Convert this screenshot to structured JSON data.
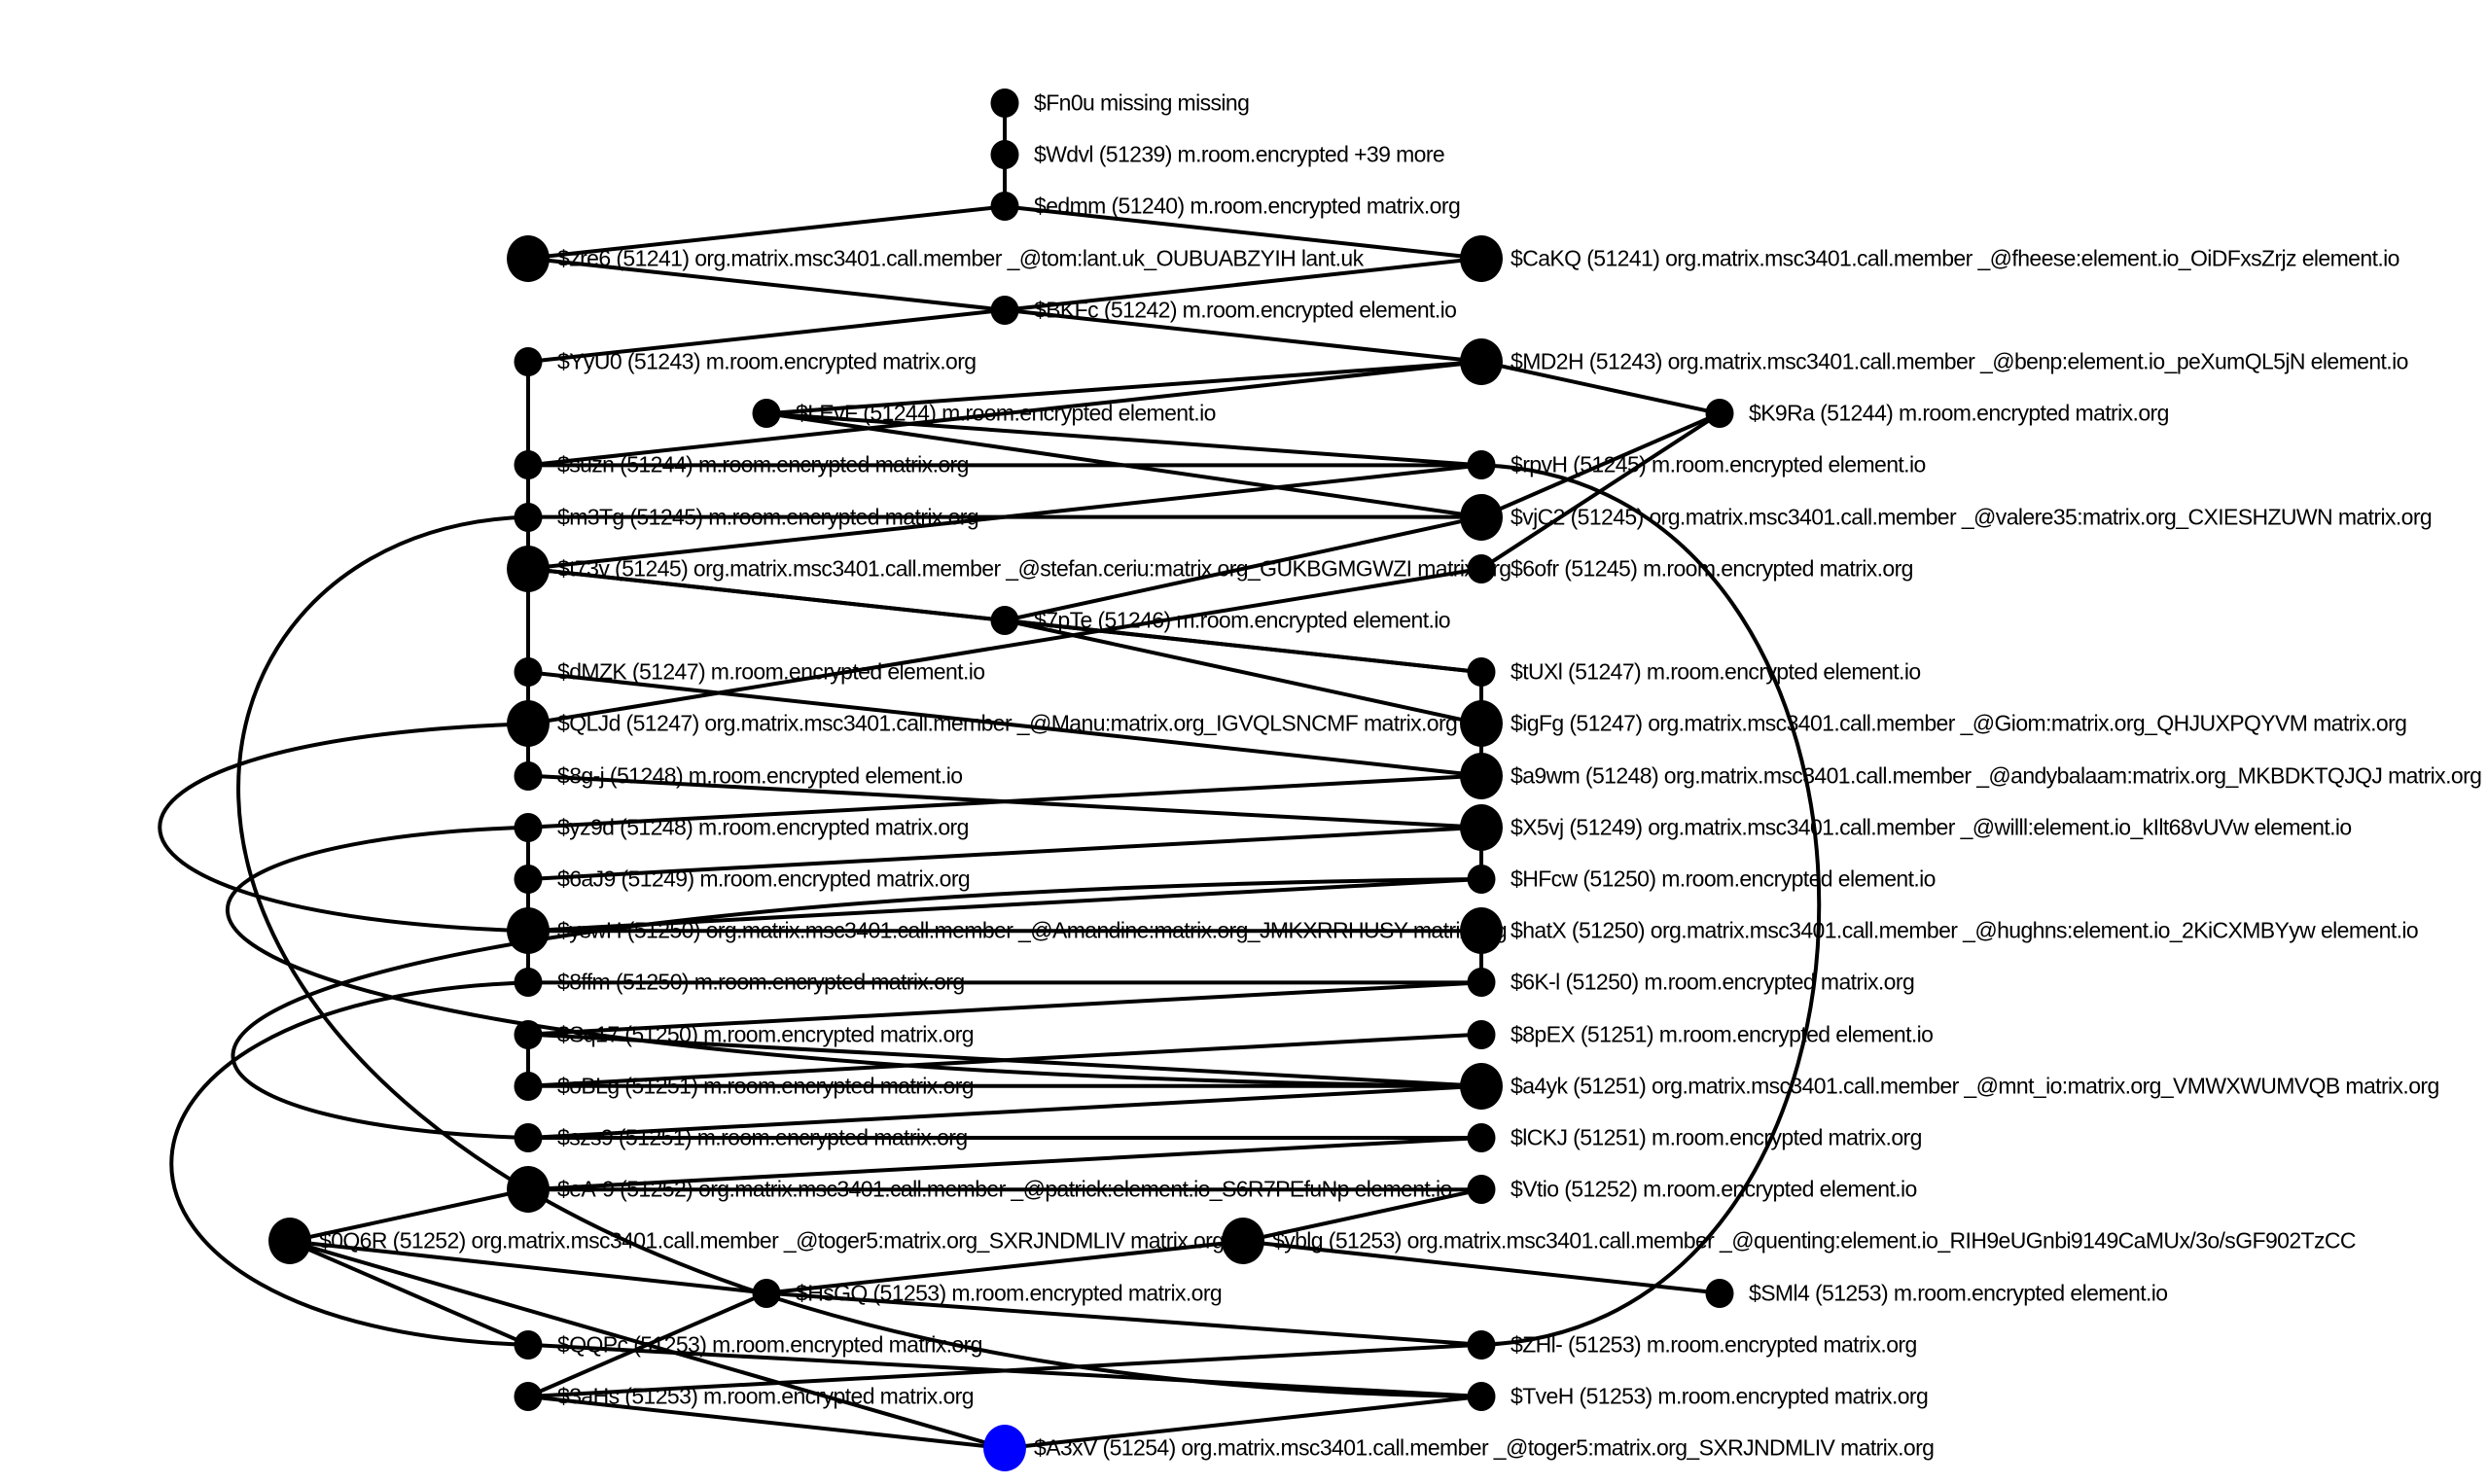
{
  "graph": {
    "highlight_color": "#0000ff",
    "node_color": "#000000",
    "nodes": [
      {
        "id": "Fn0u",
        "col": 3,
        "row": 0,
        "size": "small",
        "label": "$Fn0u missing missing"
      },
      {
        "id": "Wdvl",
        "col": 3,
        "row": 1,
        "size": "small",
        "label": "$Wdvl (51239) m.room.encrypted +39 more"
      },
      {
        "id": "edmm",
        "col": 3,
        "row": 2,
        "size": "small",
        "label": "$edmm (51240) m.room.encrypted matrix.org"
      },
      {
        "id": "zre6",
        "col": 1,
        "row": 3,
        "size": "big",
        "label": "$zre6 (51241) org.matrix.msc3401.call.member _@tom:lant.uk_OUBUABZYIH lant.uk"
      },
      {
        "id": "CaKQ",
        "col": 5,
        "row": 3,
        "size": "big",
        "label": "$CaKQ (51241) org.matrix.msc3401.call.member _@fheese:element.io_OiDFxsZrjz element.io"
      },
      {
        "id": "BKFc",
        "col": 3,
        "row": 4,
        "size": "small",
        "label": "$BKFc (51242) m.room.encrypted element.io"
      },
      {
        "id": "YyU0",
        "col": 1,
        "row": 5,
        "size": "small",
        "label": "$YyU0 (51243) m.room.encrypted matrix.org"
      },
      {
        "id": "MD2H",
        "col": 5,
        "row": 5,
        "size": "big",
        "label": "$MD2H (51243) org.matrix.msc3401.call.member _@benp:element.io_peXumQL5jN element.io"
      },
      {
        "id": "LEvF",
        "col": 2,
        "row": 6,
        "size": "small",
        "label": "$LEvF (51244) m.room.encrypted element.io"
      },
      {
        "id": "K9Ra",
        "col": 6,
        "row": 6,
        "size": "small",
        "label": "$K9Ra (51244) m.room.encrypted matrix.org"
      },
      {
        "id": "suzn",
        "col": 1,
        "row": 7,
        "size": "small",
        "label": "$suzn (51244) m.room.encrypted matrix.org"
      },
      {
        "id": "rpvH",
        "col": 5,
        "row": 7,
        "size": "small",
        "label": "$rpvH (51245) m.room.encrypted element.io"
      },
      {
        "id": "m3Tg",
        "col": 1,
        "row": 8,
        "size": "small",
        "label": "$m3Tg (51245) m.room.encrypted matrix.org"
      },
      {
        "id": "vjC2",
        "col": 5,
        "row": 8,
        "size": "big",
        "label": "$vjC2 (51245) org.matrix.msc3401.call.member _@valere35:matrix.org_CXIESHZUWN matrix.org"
      },
      {
        "id": "t73v",
        "col": 1,
        "row": 9,
        "size": "big",
        "label": "$t73v (51245) org.matrix.msc3401.call.member _@stefan.ceriu:matrix.org_GUKBGMGWZI matrix.org"
      },
      {
        "id": "6ofr",
        "col": 5,
        "row": 9,
        "size": "small",
        "label": "$6ofr (51245) m.room.encrypted matrix.org"
      },
      {
        "id": "7pTe",
        "col": 3,
        "row": 10,
        "size": "small",
        "label": "$7pTe (51246) m.room.encrypted element.io"
      },
      {
        "id": "dMZK",
        "col": 1,
        "row": 11,
        "size": "small",
        "label": "$dMZK (51247) m.room.encrypted element.io"
      },
      {
        "id": "tUXl",
        "col": 5,
        "row": 11,
        "size": "small",
        "label": "$tUXl (51247) m.room.encrypted element.io"
      },
      {
        "id": "QLJd",
        "col": 1,
        "row": 12,
        "size": "big",
        "label": "$QLJd (51247) org.matrix.msc3401.call.member _@Manu:matrix.org_IGVQLSNCMF matrix.org"
      },
      {
        "id": "igFg",
        "col": 5,
        "row": 12,
        "size": "big",
        "label": "$igFg (51247) org.matrix.msc3401.call.member _@Giom:matrix.org_QHJUXPQYVM matrix.org"
      },
      {
        "id": "8g-j",
        "col": 1,
        "row": 13,
        "size": "small",
        "label": "$8g-j (51248) m.room.encrypted element.io"
      },
      {
        "id": "a9wm",
        "col": 5,
        "row": 13,
        "size": "big",
        "label": "$a9wm (51248) org.matrix.msc3401.call.member _@andybalaam:matrix.org_MKBDKTQJQJ matrix.org"
      },
      {
        "id": "yz9d",
        "col": 1,
        "row": 14,
        "size": "small",
        "label": "$yz9d (51248) m.room.encrypted matrix.org"
      },
      {
        "id": "X5vj",
        "col": 5,
        "row": 14,
        "size": "big",
        "label": "$X5vj (51249) org.matrix.msc3401.call.member _@willl:element.io_kIlt68vUVw element.io"
      },
      {
        "id": "6aJ9",
        "col": 1,
        "row": 15,
        "size": "small",
        "label": "$6aJ9 (51249) m.room.encrypted matrix.org"
      },
      {
        "id": "HFcw",
        "col": 5,
        "row": 15,
        "size": "small",
        "label": "$HFcw (51250) m.room.encrypted element.io"
      },
      {
        "id": "yswH",
        "col": 1,
        "row": 16,
        "size": "big",
        "label": "$yswH (51250) org.matrix.msc3401.call.member _@Amandine:matrix.org_JMKXRRHUSY matrix.org"
      },
      {
        "id": "hatX",
        "col": 5,
        "row": 16,
        "size": "big",
        "label": "$hatX (51250) org.matrix.msc3401.call.member _@hughns:element.io_2KiCXMBYyw element.io"
      },
      {
        "id": "8ffm",
        "col": 1,
        "row": 17,
        "size": "small",
        "label": "$8ffm (51250) m.room.encrypted matrix.org"
      },
      {
        "id": "6K-l",
        "col": 5,
        "row": 17,
        "size": "small",
        "label": "$6K-l (51250) m.room.encrypted matrix.org"
      },
      {
        "id": "Sq17",
        "col": 1,
        "row": 18,
        "size": "small",
        "label": "$Sq17 (51250) m.room.encrypted matrix.org"
      },
      {
        "id": "8pEX",
        "col": 5,
        "row": 18,
        "size": "small",
        "label": "$8pEX (51251) m.room.encrypted element.io"
      },
      {
        "id": "oBLg",
        "col": 1,
        "row": 19,
        "size": "small",
        "label": "$oBLg (51251) m.room.encrypted matrix.org"
      },
      {
        "id": "a4yk",
        "col": 5,
        "row": 19,
        "size": "big",
        "label": "$a4yk (51251) org.matrix.msc3401.call.member _@mnt_io:matrix.org_VMWXWUMVQB matrix.org"
      },
      {
        "id": "szs9",
        "col": 1,
        "row": 20,
        "size": "small",
        "label": "$szs9 (51251) m.room.encrypted matrix.org"
      },
      {
        "id": "lCKJ",
        "col": 5,
        "row": 20,
        "size": "small",
        "label": "$lCKJ (51251) m.room.encrypted matrix.org"
      },
      {
        "id": "eA-9",
        "col": 1,
        "row": 21,
        "size": "big",
        "label": "$eA-9 (51252) org.matrix.msc3401.call.member _@patrick:element.io_S6R7PEfuNp element.io"
      },
      {
        "id": "Vtio",
        "col": 5,
        "row": 21,
        "size": "small",
        "label": "$Vtio (51252) m.room.encrypted element.io"
      },
      {
        "id": "0Q6R",
        "col": 0,
        "row": 22,
        "size": "big",
        "label": "$0Q6R (51252) org.matrix.msc3401.call.member _@toger5:matrix.org_SXRJNDMLIV matrix.org"
      },
      {
        "id": "yblg",
        "col": 4,
        "row": 22,
        "size": "big",
        "label": "$yblg (51253) org.matrix.msc3401.call.member _@quenting:element.io_RIH9eUGnbi9149CaMUx/3o/sGF902TzCC"
      },
      {
        "id": "HsGQ",
        "col": 2,
        "row": 23,
        "size": "small",
        "label": "$HsGQ (51253) m.room.encrypted matrix.org"
      },
      {
        "id": "SMl4",
        "col": 6,
        "row": 23,
        "size": "small",
        "label": "$SMl4 (51253) m.room.encrypted element.io"
      },
      {
        "id": "QQPc",
        "col": 1,
        "row": 24,
        "size": "small",
        "label": "$QQPc (51253) m.room.encrypted matrix.org"
      },
      {
        "id": "ZHl-",
        "col": 5,
        "row": 24,
        "size": "small",
        "label": "$ZHl- (51253) m.room.encrypted matrix.org"
      },
      {
        "id": "3aHs",
        "col": 1,
        "row": 25,
        "size": "small",
        "label": "$3aHs (51253) m.room.encrypted matrix.org"
      },
      {
        "id": "TveH",
        "col": 5,
        "row": 25,
        "size": "small",
        "label": "$TveH (51253) m.room.encrypted matrix.org"
      },
      {
        "id": "A3xV",
        "col": 3,
        "row": 26,
        "size": "big",
        "highlighted": true,
        "label": "$A3xV (51254) org.matrix.msc3401.call.member _@toger5:matrix.org_SXRJNDMLIV matrix.org"
      }
    ],
    "edges": [
      [
        "Fn0u",
        "Wdvl"
      ],
      [
        "Wdvl",
        "edmm"
      ],
      [
        "edmm",
        "zre6"
      ],
      [
        "edmm",
        "CaKQ"
      ],
      [
        "zre6",
        "BKFc"
      ],
      [
        "CaKQ",
        "BKFc"
      ],
      [
        "BKFc",
        "YyU0"
      ],
      [
        "BKFc",
        "MD2H"
      ],
      [
        "MD2H",
        "K9Ra"
      ],
      [
        "MD2H",
        "LEvF"
      ],
      [
        "MD2H",
        "suzn"
      ],
      [
        "YyU0",
        "suzn"
      ],
      [
        "LEvF",
        "rpvH"
      ],
      [
        "LEvF",
        "vjC2"
      ],
      [
        "suzn",
        "m3Tg"
      ],
      [
        "suzn",
        "rpvH"
      ],
      [
        "m3Tg",
        "t73v"
      ],
      [
        "m3Tg",
        "vjC2"
      ],
      [
        "K9Ra",
        "vjC2"
      ],
      [
        "K9Ra",
        "6ofr"
      ],
      [
        "rpvH",
        "t73v"
      ],
      [
        "vjC2",
        "7pTe"
      ],
      [
        "t73v",
        "7pTe"
      ],
      [
        "t73v",
        "dMZK"
      ],
      [
        "t73v",
        "tUXl"
      ],
      [
        "6ofr",
        "QLJd"
      ],
      [
        "7pTe",
        "tUXl"
      ],
      [
        "7pTe",
        "igFg"
      ],
      [
        "dMZK",
        "QLJd"
      ],
      [
        "dMZK",
        "a9wm"
      ],
      [
        "tUXl",
        "igFg"
      ],
      [
        "igFg",
        "a9wm"
      ],
      [
        "QLJd",
        "8g-j"
      ],
      [
        "QLJd",
        "yswH"
      ],
      [
        "8g-j",
        "X5vj"
      ],
      [
        "a9wm",
        "yz9d"
      ],
      [
        "yz9d",
        "6aJ9"
      ],
      [
        "X5vj",
        "HFcw"
      ],
      [
        "X5vj",
        "6aJ9"
      ],
      [
        "6aJ9",
        "yswH"
      ],
      [
        "HFcw",
        "yswH"
      ],
      [
        "yswH",
        "hatX"
      ],
      [
        "yswH",
        "8ffm"
      ],
      [
        "hatX",
        "6K-l"
      ],
      [
        "8ffm",
        "6K-l"
      ],
      [
        "6K-l",
        "Sq17"
      ],
      [
        "Sq17",
        "oBLg"
      ],
      [
        "Sq17",
        "a4yk"
      ],
      [
        "8pEX",
        "oBLg"
      ],
      [
        "oBLg",
        "a4yk"
      ],
      [
        "a4yk",
        "szs9"
      ],
      [
        "szs9",
        "lCKJ"
      ],
      [
        "lCKJ",
        "eA-9"
      ],
      [
        "eA-9",
        "Vtio"
      ],
      [
        "eA-9",
        "0Q6R"
      ],
      [
        "Vtio",
        "yblg"
      ],
      [
        "0Q6R",
        "HsGQ"
      ],
      [
        "yblg",
        "SMl4"
      ],
      [
        "yblg",
        "HsGQ"
      ],
      [
        "0Q6R",
        "QQPc"
      ],
      [
        "HsGQ",
        "ZHl-"
      ],
      [
        "HsGQ",
        "3aHs"
      ],
      [
        "QQPc",
        "TveH"
      ],
      [
        "ZHl-",
        "3aHs"
      ],
      [
        "3aHs",
        "A3xV"
      ],
      [
        "TveH",
        "A3xV"
      ],
      [
        "0Q6R",
        "A3xV"
      ],
      [
        "8ffm",
        "QQPc"
      ],
      [
        "yz9d",
        "a4yk"
      ],
      [
        "HFcw",
        "szs9"
      ],
      [
        "m3Tg",
        "TveH"
      ],
      [
        "rpvH",
        "ZHl-"
      ]
    ]
  }
}
